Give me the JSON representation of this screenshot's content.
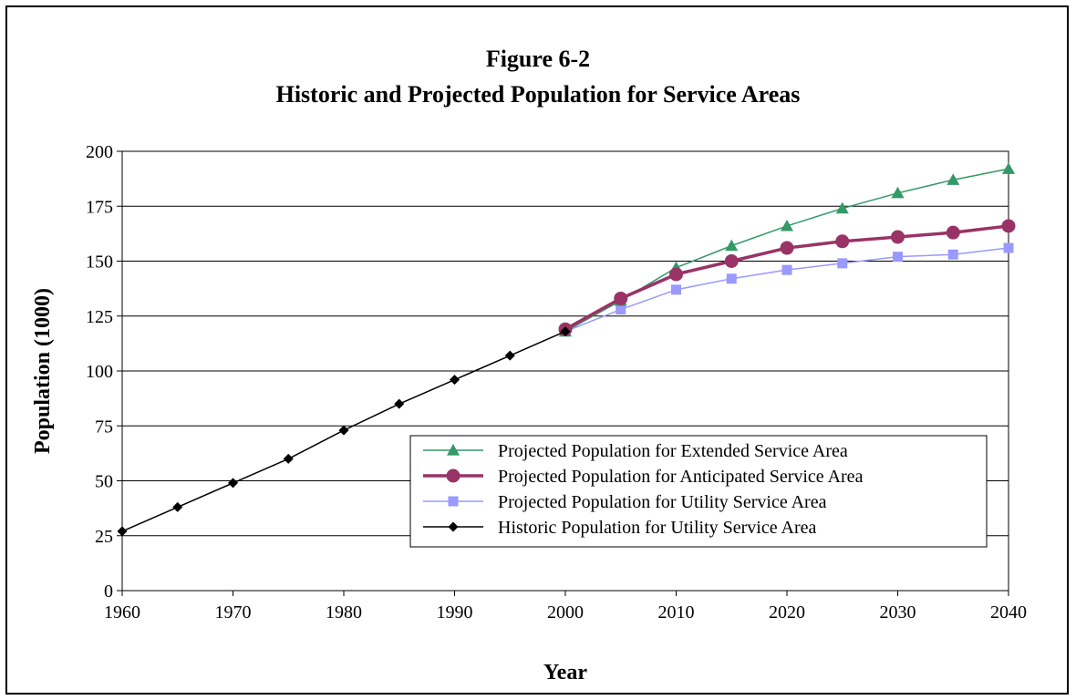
{
  "chart_data": {
    "type": "line",
    "title": "Figure 6-2",
    "subtitle": "Historic and Projected Population for Service Areas",
    "xlabel": "Year",
    "ylabel": "Population (1000)",
    "xlim": [
      1960,
      2040
    ],
    "ylim": [
      0,
      200
    ],
    "xticks": [
      1960,
      1970,
      1980,
      1990,
      2000,
      2010,
      2020,
      2030,
      2040
    ],
    "yticks": [
      0,
      25,
      50,
      75,
      100,
      125,
      150,
      175,
      200
    ],
    "grid": "horizontal",
    "legend_position": "bottom-right",
    "series": [
      {
        "name": "Projected Population for Extended Service Area",
        "color": "#339966",
        "marker": "triangle",
        "x": [
          2000,
          2005,
          2010,
          2015,
          2020,
          2025,
          2030,
          2035,
          2040
        ],
        "y": [
          118,
          132,
          147,
          157,
          166,
          174,
          181,
          187,
          192
        ]
      },
      {
        "name": "Projected Population for Anticipated Service Area",
        "color": "#993366",
        "marker": "circle",
        "x": [
          2000,
          2005,
          2010,
          2015,
          2020,
          2025,
          2030,
          2035,
          2040
        ],
        "y": [
          119,
          133,
          144,
          150,
          156,
          159,
          161,
          163,
          166
        ]
      },
      {
        "name": "Projected Population for Utility Service Area",
        "color": "#9999ff",
        "marker": "square",
        "x": [
          2000,
          2005,
          2010,
          2015,
          2020,
          2025,
          2030,
          2035,
          2040
        ],
        "y": [
          118,
          128,
          137,
          142,
          146,
          149,
          152,
          153,
          156
        ]
      },
      {
        "name": "Historic Population for Utility Service Area",
        "color": "#000000",
        "marker": "diamond",
        "x": [
          1960,
          1965,
          1970,
          1975,
          1980,
          1985,
          1990,
          1995,
          2000
        ],
        "y": [
          27,
          38,
          49,
          60,
          73,
          85,
          96,
          107,
          118
        ]
      }
    ]
  }
}
